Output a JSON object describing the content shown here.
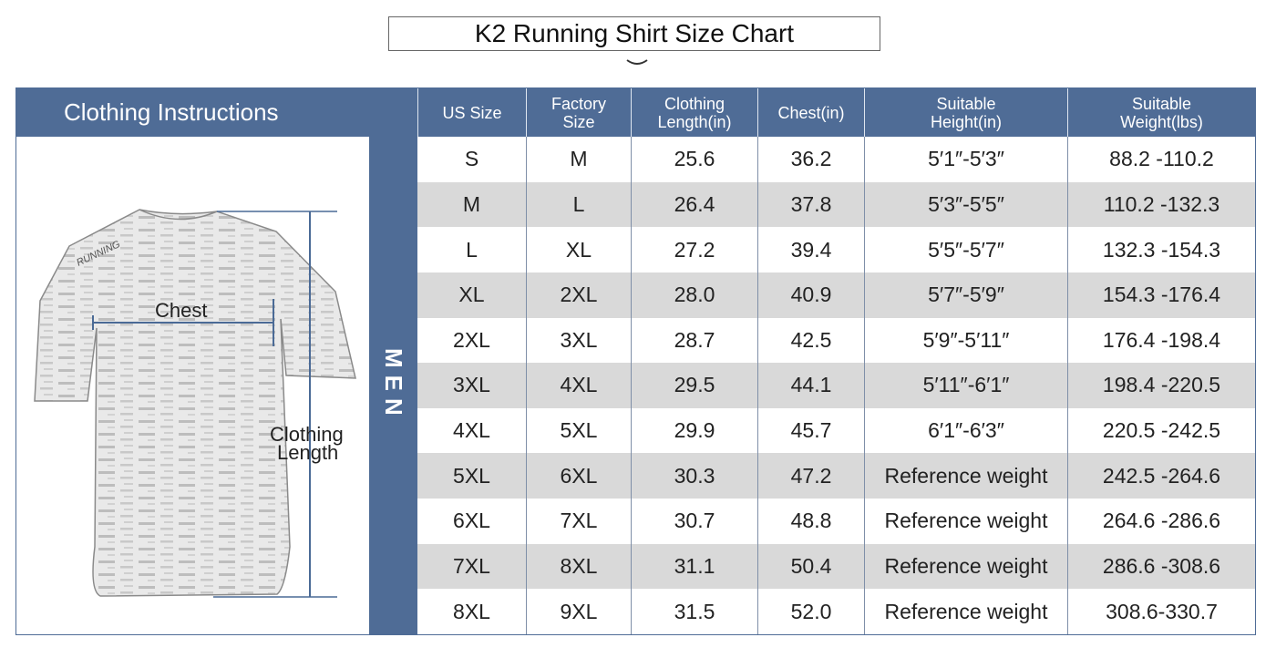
{
  "title": "K2 Running Shirt Size Chart",
  "colors": {
    "header_bg": "#4f6c96",
    "shaded_row": "#d9d9d9",
    "header_text": "#ffffff"
  },
  "section_title": "Clothing Instructions",
  "gender_label": "MEN",
  "illustration": {
    "chest_label": "Chest",
    "length_label_1": "Clothing",
    "length_label_2": "Length",
    "shirt_print": "RUNNING"
  },
  "columns": [
    "US Size",
    "Factory Size",
    "Clothing Length(in)",
    "Chest(in)",
    "Suitable Height(in)",
    "Suitable Weight(lbs)"
  ],
  "rows": [
    [
      "S",
      "M",
      "25.6",
      "36.2",
      "5′1″-5′3″",
      "88.2 -110.2"
    ],
    [
      "M",
      "L",
      "26.4",
      "37.8",
      "5′3″-5′5″",
      "110.2 -132.3"
    ],
    [
      "L",
      "XL",
      "27.2",
      "39.4",
      "5′5″-5′7″",
      "132.3 -154.3"
    ],
    [
      "XL",
      "2XL",
      "28.0",
      "40.9",
      "5′7″-5′9″",
      "154.3 -176.4"
    ],
    [
      "2XL",
      "3XL",
      "28.7",
      "42.5",
      "5′9″-5′11″",
      "176.4 -198.4"
    ],
    [
      "3XL",
      "4XL",
      "29.5",
      "44.1",
      "5′11″-6′1″",
      "198.4 -220.5"
    ],
    [
      "4XL",
      "5XL",
      "29.9",
      "45.7",
      "6′1″-6′3″",
      "220.5 -242.5"
    ],
    [
      "5XL",
      "6XL",
      "30.3",
      "47.2",
      "Reference weight",
      "242.5 -264.6"
    ],
    [
      "6XL",
      "7XL",
      "30.7",
      "48.8",
      "Reference weight",
      "264.6 -286.6"
    ],
    [
      "7XL",
      "8XL",
      "31.1",
      "50.4",
      "Reference weight",
      "286.6 -308.6"
    ],
    [
      "8XL",
      "9XL",
      "31.5",
      "52.0",
      "Reference weight",
      "308.6-330.7"
    ]
  ]
}
